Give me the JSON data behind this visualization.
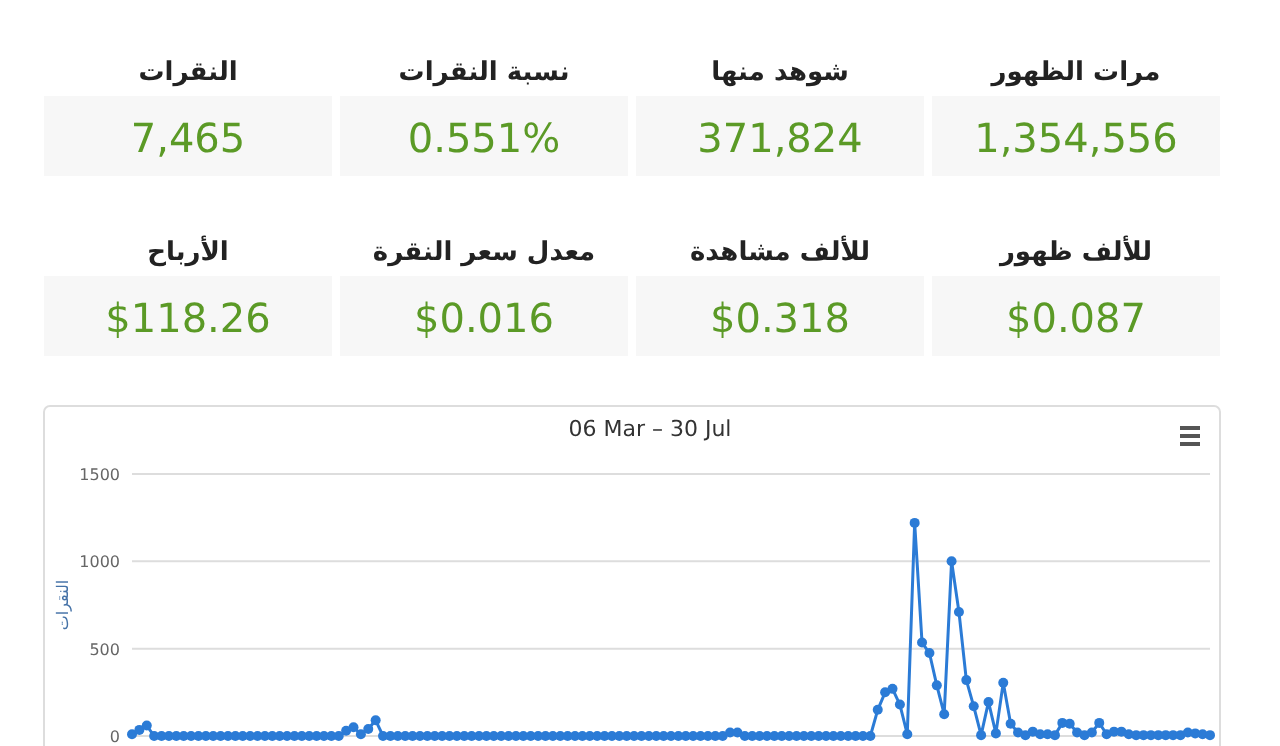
{
  "chart_data": [
    {
      "type": "other",
      "annotations": [
        "مرات الظهور",
        "1,354,556",
        "شوهد منها",
        "371,824",
        "نسبة النقرات",
        "0.551%",
        "النقرات",
        "7,465",
        "للألف ظهور",
        "$0.087",
        "للألف مشاهدة",
        "$0.318",
        "معدل سعر النقرة",
        "$0.016",
        "الأرباح",
        "$118.26"
      ]
    },
    {
      "type": "line",
      "title": "06 Mar – 30 Jul",
      "ylabel": "النقرات",
      "ylim": [
        0,
        1500
      ],
      "yticks": [
        0,
        500,
        1000,
        1500
      ],
      "grid": "y",
      "marker": "circle",
      "tick_labels": "y",
      "categories": [
        null,
        null,
        null,
        null,
        null,
        null,
        null,
        null,
        null,
        null,
        null,
        null,
        null,
        null,
        null,
        null,
        null,
        null,
        null,
        null,
        null,
        null,
        null,
        null,
        null,
        null,
        null,
        null,
        null,
        null,
        null,
        null,
        null,
        null,
        null,
        null,
        null,
        null,
        null,
        null,
        null,
        null,
        null,
        null,
        null,
        null,
        null,
        null,
        null,
        null,
        null,
        null,
        null,
        null,
        null,
        null,
        null,
        null,
        null,
        null,
        null,
        null,
        null,
        null,
        null,
        null,
        null,
        null,
        null,
        null,
        null,
        null,
        null,
        null,
        null,
        null,
        null,
        null,
        null,
        null,
        null,
        null,
        null,
        null,
        null,
        null,
        null,
        null,
        null,
        null,
        null,
        null,
        null,
        null,
        null,
        null,
        null,
        null,
        null,
        null,
        null,
        null,
        null,
        null,
        null,
        null,
        null,
        null,
        null,
        null,
        null,
        null,
        null,
        null,
        null,
        null,
        null,
        null,
        null,
        null,
        null,
        null,
        null,
        null,
        null,
        null,
        null,
        null,
        null,
        null,
        null,
        null,
        null,
        null,
        null,
        null,
        null,
        null,
        null,
        null,
        null,
        null,
        null,
        null,
        null,
        null,
        null
      ],
      "series": [
        {
          "color": "#2b7bd6",
          "values": [
            10,
            35,
            60,
            0,
            0,
            0,
            0,
            0,
            0,
            0,
            0,
            0,
            0,
            0,
            0,
            0,
            0,
            0,
            0,
            0,
            0,
            0,
            0,
            0,
            0,
            0,
            0,
            0,
            0,
            30,
            50,
            10,
            40,
            90,
            0,
            0,
            0,
            0,
            0,
            0,
            0,
            0,
            0,
            0,
            0,
            0,
            0,
            0,
            0,
            0,
            0,
            0,
            0,
            0,
            0,
            0,
            0,
            0,
            0,
            0,
            0,
            0,
            0,
            0,
            0,
            0,
            0,
            0,
            0,
            0,
            0,
            0,
            0,
            0,
            0,
            0,
            0,
            0,
            0,
            0,
            0,
            20,
            20,
            0,
            0,
            0,
            0,
            0,
            0,
            0,
            0,
            0,
            0,
            0,
            0,
            0,
            0,
            0,
            0,
            0,
            0,
            150,
            250,
            270,
            180,
            10,
            1220,
            535,
            475,
            290,
            125,
            1000,
            710,
            320,
            170,
            5,
            195,
            15,
            305,
            70,
            20,
            5,
            25,
            10,
            10,
            5,
            75,
            70,
            20,
            5,
            20,
            75,
            10,
            25,
            25,
            10,
            5,
            5,
            5,
            5,
            5,
            5,
            5,
            20,
            15,
            10,
            5
          ]
        }
      ]
    }
  ]
}
